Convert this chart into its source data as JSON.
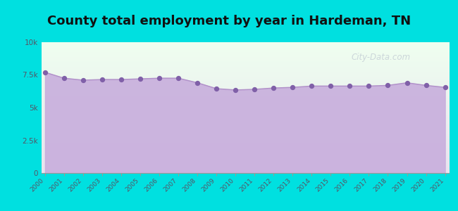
{
  "title": "County total employment by year in Hardeman, TN",
  "title_fontsize": 13,
  "title_fontweight": "bold",
  "years": [
    2000,
    2001,
    2002,
    2003,
    2004,
    2005,
    2006,
    2007,
    2008,
    2009,
    2010,
    2011,
    2012,
    2013,
    2014,
    2015,
    2016,
    2017,
    2018,
    2019,
    2020,
    2021
  ],
  "values": [
    7700,
    7250,
    7100,
    7150,
    7150,
    7200,
    7250,
    7250,
    6900,
    6450,
    6350,
    6400,
    6500,
    6550,
    6650,
    6650,
    6650,
    6650,
    6700,
    6900,
    6700,
    6550
  ],
  "ylim": [
    0,
    10000
  ],
  "yticks": [
    0,
    2500,
    5000,
    7500,
    10000
  ],
  "ytick_labels": [
    "0",
    "2.5k",
    "5k",
    "7.5k",
    "10k"
  ],
  "line_color": "#b090c8",
  "fill_color": "#c8aedd",
  "fill_alpha": 0.9,
  "marker_color": "#8060a8",
  "marker_size": 18,
  "background_outer": "#00e0e0",
  "bg_top_color": "#efffef",
  "bg_bottom_color": "#e8e4f0",
  "watermark_text": "City-Data.com",
  "watermark_color": "#b0b8c8",
  "watermark_alpha": 0.55
}
